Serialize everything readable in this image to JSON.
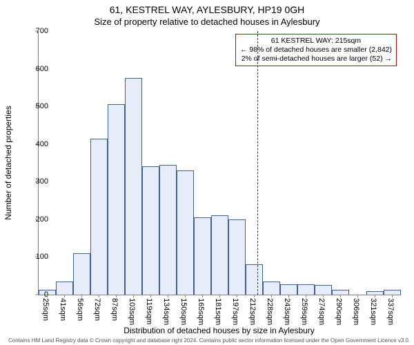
{
  "title_line1": "61, KESTREL WAY, AYLESBURY, HP19 0GH",
  "title_line2": "Size of property relative to detached houses in Aylesbury",
  "y_axis": {
    "label": "Number of detached properties",
    "min": 0,
    "max": 700,
    "ticks": [
      0,
      100,
      200,
      300,
      400,
      500,
      600,
      700
    ],
    "label_fontsize": 12,
    "tick_fontsize": 11
  },
  "x_axis": {
    "label": "Distribution of detached houses by size in Aylesbury",
    "tick_labels": [
      "25sqm",
      "41sqm",
      "56sqm",
      "72sqm",
      "87sqm",
      "103sqm",
      "119sqm",
      "134sqm",
      "150sqm",
      "165sqm",
      "181sqm",
      "197sqm",
      "212sqm",
      "228sqm",
      "243sqm",
      "259sqm",
      "274sqm",
      "290sqm",
      "306sqm",
      "321sqm",
      "337sqm"
    ],
    "label_fontsize": 12,
    "tick_fontsize": 11
  },
  "chart": {
    "type": "histogram",
    "bar_fill": "#e6ecf8",
    "bar_stroke": "#3e5f9e",
    "bar_stroke_width": 0.6,
    "background": "#ffffff",
    "axis_color": "#808080",
    "values": [
      12,
      35,
      110,
      415,
      505,
      575,
      340,
      345,
      330,
      205,
      210,
      200,
      80,
      35,
      28,
      28,
      25,
      12,
      0,
      10,
      12
    ]
  },
  "reference_line": {
    "x_value_sqm": 215,
    "color": "#cc0000",
    "style": "dashed",
    "dash": "3,3",
    "width": 1
  },
  "annotation": {
    "line1": "61 KESTREL WAY: 215sqm",
    "line2": "← 98% of detached houses are smaller (2,842)",
    "line3": "2% of semi-detached houses are larger (52) →",
    "border_color": "#cc0000",
    "font_size": 10.5,
    "text_color": "#000000"
  },
  "caption": "Contains HM Land Registry data © Crown copyright and database right 2024.  Contains public sector information licensed under the Open Government Licence v3.0."
}
